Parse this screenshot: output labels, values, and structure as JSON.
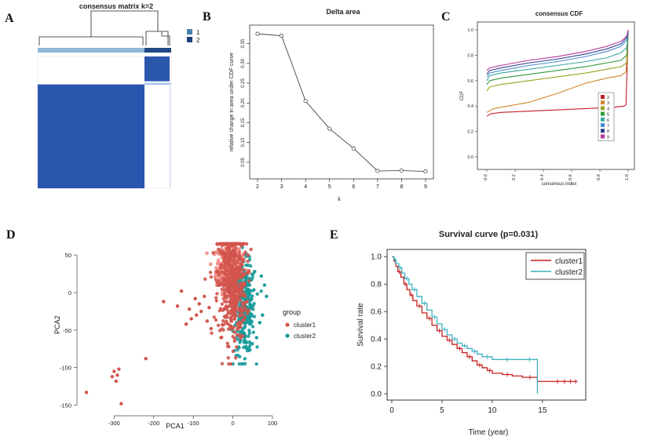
{
  "figure": {
    "panel_letters": [
      "A",
      "B",
      "C",
      "D",
      "E"
    ]
  },
  "chart_data": [
    {
      "panel": "A",
      "type": "heatmap",
      "title": "consensus matrix k=2",
      "legend": {
        "entries": [
          "1",
          "2"
        ],
        "colors": [
          "#4a7fb0",
          "#1f3f7a"
        ],
        "placement": "top-right"
      },
      "cluster_fractions": [
        0.8,
        0.2
      ],
      "colors": {
        "high": "#2a56ae",
        "low": "#ffffff",
        "bar1": "#8fb8d8",
        "bar2": "#1f4a86"
      }
    },
    {
      "panel": "B",
      "type": "line",
      "title": "Delta area",
      "xlabel": "k",
      "ylabel": "relative change in area under CDF curve",
      "x": [
        2,
        3,
        4,
        5,
        6,
        7,
        8,
        9
      ],
      "y": [
        0.375,
        0.37,
        0.205,
        0.135,
        0.085,
        0.028,
        0.029,
        0.027
      ],
      "xlim": [
        2,
        9
      ],
      "ylim": [
        0.02,
        0.385
      ],
      "xticks": [
        "2",
        "3",
        "4",
        "5",
        "6",
        "7",
        "8",
        "9"
      ],
      "yticks": [
        0.05,
        0.1,
        0.15,
        0.2,
        0.25,
        0.3,
        0.35
      ],
      "ytick_labels": [
        "0.05",
        "0.10",
        "0.15",
        "0.20",
        "0.25",
        "0.30",
        "0.35"
      ]
    },
    {
      "panel": "C",
      "type": "line",
      "title": "consensus CDF",
      "xlabel": "consensus index",
      "ylabel": "CDF",
      "xlim": [
        0,
        1
      ],
      "ylim": [
        0,
        1
      ],
      "xticks": [
        0,
        0.2,
        0.4,
        0.6,
        0.8,
        1.0
      ],
      "xtick_labels": [
        "0.0",
        "0.2",
        "0.4",
        "0.6",
        "0.8",
        "1.0"
      ],
      "yticks": [
        0.0,
        0.2,
        0.4,
        0.6,
        0.8,
        1.0
      ],
      "ytick_labels": [
        "0.0",
        "0.2",
        "0.4",
        "0.6",
        "0.8",
        "1.0"
      ],
      "legend_placement": "bottom-right",
      "series": [
        {
          "name": "2",
          "color": "#c0202a",
          "x": [
            0,
            0.03,
            0.1,
            0.3,
            0.5,
            0.7,
            0.9,
            0.97,
            0.985,
            0.99,
            1.0
          ],
          "y": [
            0.32,
            0.34,
            0.35,
            0.36,
            0.37,
            0.38,
            0.39,
            0.4,
            0.41,
            0.6,
            0.99
          ]
        },
        {
          "name": "3",
          "color": "#d2872a",
          "x": [
            0,
            0.05,
            0.15,
            0.3,
            0.5,
            0.7,
            0.85,
            0.95,
            0.985,
            1.0
          ],
          "y": [
            0.35,
            0.38,
            0.4,
            0.43,
            0.5,
            0.58,
            0.62,
            0.64,
            0.67,
            0.99
          ]
        },
        {
          "name": "4",
          "color": "#9aa51e",
          "x": [
            0,
            0.02,
            0.1,
            0.3,
            0.5,
            0.7,
            0.85,
            0.95,
            0.99,
            1.0
          ],
          "y": [
            0.52,
            0.55,
            0.57,
            0.6,
            0.63,
            0.66,
            0.69,
            0.71,
            0.74,
            0.98
          ]
        },
        {
          "name": "5",
          "color": "#2e9a3a",
          "x": [
            0,
            0.02,
            0.1,
            0.3,
            0.5,
            0.7,
            0.85,
            0.95,
            0.99,
            1.0
          ],
          "y": [
            0.57,
            0.6,
            0.62,
            0.65,
            0.68,
            0.71,
            0.74,
            0.76,
            0.8,
            0.98
          ]
        },
        {
          "name": "6",
          "color": "#3aa8a0",
          "x": [
            0,
            0.02,
            0.1,
            0.3,
            0.5,
            0.7,
            0.85,
            0.95,
            0.99,
            1.0
          ],
          "y": [
            0.6,
            0.64,
            0.66,
            0.69,
            0.72,
            0.75,
            0.78,
            0.82,
            0.86,
            0.98
          ]
        },
        {
          "name": "7",
          "color": "#4a8ad0",
          "x": [
            0,
            0.02,
            0.1,
            0.3,
            0.5,
            0.7,
            0.85,
            0.95,
            0.99,
            1.0
          ],
          "y": [
            0.63,
            0.66,
            0.68,
            0.72,
            0.75,
            0.79,
            0.83,
            0.87,
            0.92,
            0.99
          ]
        },
        {
          "name": "8",
          "color": "#2c3f8c",
          "x": [
            0,
            0.02,
            0.1,
            0.3,
            0.5,
            0.7,
            0.85,
            0.95,
            0.99,
            1.0
          ],
          "y": [
            0.65,
            0.68,
            0.7,
            0.74,
            0.77,
            0.81,
            0.85,
            0.89,
            0.94,
            0.99
          ]
        },
        {
          "name": "9",
          "color": "#b8349a",
          "x": [
            0,
            0.02,
            0.1,
            0.3,
            0.5,
            0.7,
            0.85,
            0.95,
            0.99,
            1.0
          ],
          "y": [
            0.68,
            0.7,
            0.72,
            0.76,
            0.79,
            0.83,
            0.87,
            0.91,
            0.95,
            1.0
          ]
        }
      ]
    },
    {
      "panel": "D",
      "type": "scatter",
      "xlabel": "PCA1",
      "ylabel": "PCA2",
      "xlim": [
        -390,
        110
      ],
      "ylim": [
        -162,
        70
      ],
      "xticks": [
        -300,
        -200,
        -100,
        0,
        100
      ],
      "xtick_labels": [
        "-300",
        "-200",
        "-100",
        "0",
        "100"
      ],
      "yticks": [
        -150,
        -100,
        -50,
        0,
        50
      ],
      "ytick_labels": [
        "-150",
        "-100",
        "-50",
        "0",
        "50"
      ],
      "legend": {
        "title": "group",
        "placement": "right"
      },
      "series": [
        {
          "name": "cluster1",
          "color": "#d2544c",
          "outliers_x": [
            -370,
            -305,
            -300,
            -295,
            -292,
            -288,
            -282,
            -220,
            -175,
            -140,
            -130,
            -118,
            -110,
            -105,
            -95,
            -92,
            -85,
            -80,
            -72,
            -65,
            -60,
            -55
          ],
          "outliers_y": [
            -133,
            -112,
            -105,
            -118,
            -110,
            -102,
            -148,
            -88,
            -12,
            -18,
            2,
            -42,
            -22,
            -35,
            -8,
            -30,
            -15,
            -25,
            -5,
            -38,
            -20,
            -48
          ],
          "cloud": {
            "x_center": -2,
            "y_center": 12,
            "x_spread": 26,
            "y_spread": 42,
            "count": 520
          }
        },
        {
          "name": "cluster2",
          "color": "#1a9a9a",
          "cloud": {
            "x_center": 30,
            "y_center": -22,
            "x_spread": 22,
            "y_spread": 30,
            "count": 300
          },
          "outliers_x": [
            60,
            68,
            75,
            80,
            72,
            85,
            55
          ],
          "outliers_y": [
            -60,
            -40,
            -30,
            10,
            22,
            -5,
            28
          ]
        }
      ],
      "light_cloud_color": "#f08a84"
    },
    {
      "panel": "E",
      "type": "line",
      "title": "Survival curve (p=0.031)",
      "xlabel": "Time (year)",
      "ylabel": "Survival rate",
      "xlim": [
        0,
        19
      ],
      "ylim": [
        0,
        1.03
      ],
      "xticks": [
        0,
        5,
        10,
        15
      ],
      "xtick_labels": [
        "0",
        "5",
        "10",
        "15"
      ],
      "yticks": [
        0,
        0.2,
        0.4,
        0.6,
        0.8,
        1.0
      ],
      "ytick_labels": [
        "0.0",
        "0.2",
        "0.4",
        "0.6",
        "0.8",
        "1.0"
      ],
      "legend_placement": "top-right",
      "series": [
        {
          "name": "cluster1",
          "color": "#c81e1e",
          "x": [
            0,
            0.2,
            0.4,
            0.6,
            0.9,
            1.2,
            1.5,
            1.8,
            2.1,
            2.5,
            3.0,
            3.5,
            4.0,
            4.5,
            5.0,
            5.5,
            6.0,
            6.5,
            7.0,
            7.5,
            8.0,
            8.5,
            9.0,
            9.5,
            10.0,
            11.0,
            12.0,
            13.0,
            14.5,
            18.5
          ],
          "y": [
            1.0,
            0.97,
            0.93,
            0.89,
            0.85,
            0.8,
            0.76,
            0.72,
            0.68,
            0.64,
            0.59,
            0.55,
            0.5,
            0.46,
            0.42,
            0.39,
            0.36,
            0.33,
            0.3,
            0.27,
            0.24,
            0.21,
            0.19,
            0.17,
            0.15,
            0.14,
            0.13,
            0.12,
            0.09,
            0.09
          ]
        },
        {
          "name": "cluster2",
          "color": "#3fb0c0",
          "x": [
            0,
            0.2,
            0.4,
            0.7,
            1.0,
            1.3,
            1.7,
            2.0,
            2.5,
            3.0,
            3.5,
            4.0,
            4.5,
            5.0,
            5.5,
            6.0,
            6.5,
            7.0,
            7.5,
            8.0,
            8.5,
            9.0,
            10.0,
            11.0,
            12.0,
            13.0,
            14.45,
            14.5
          ],
          "y": [
            1.0,
            0.98,
            0.95,
            0.92,
            0.88,
            0.84,
            0.8,
            0.76,
            0.71,
            0.66,
            0.61,
            0.56,
            0.51,
            0.47,
            0.43,
            0.4,
            0.37,
            0.35,
            0.33,
            0.31,
            0.29,
            0.27,
            0.25,
            0.25,
            0.25,
            0.25,
            0.25,
            0.0
          ]
        }
      ]
    }
  ]
}
